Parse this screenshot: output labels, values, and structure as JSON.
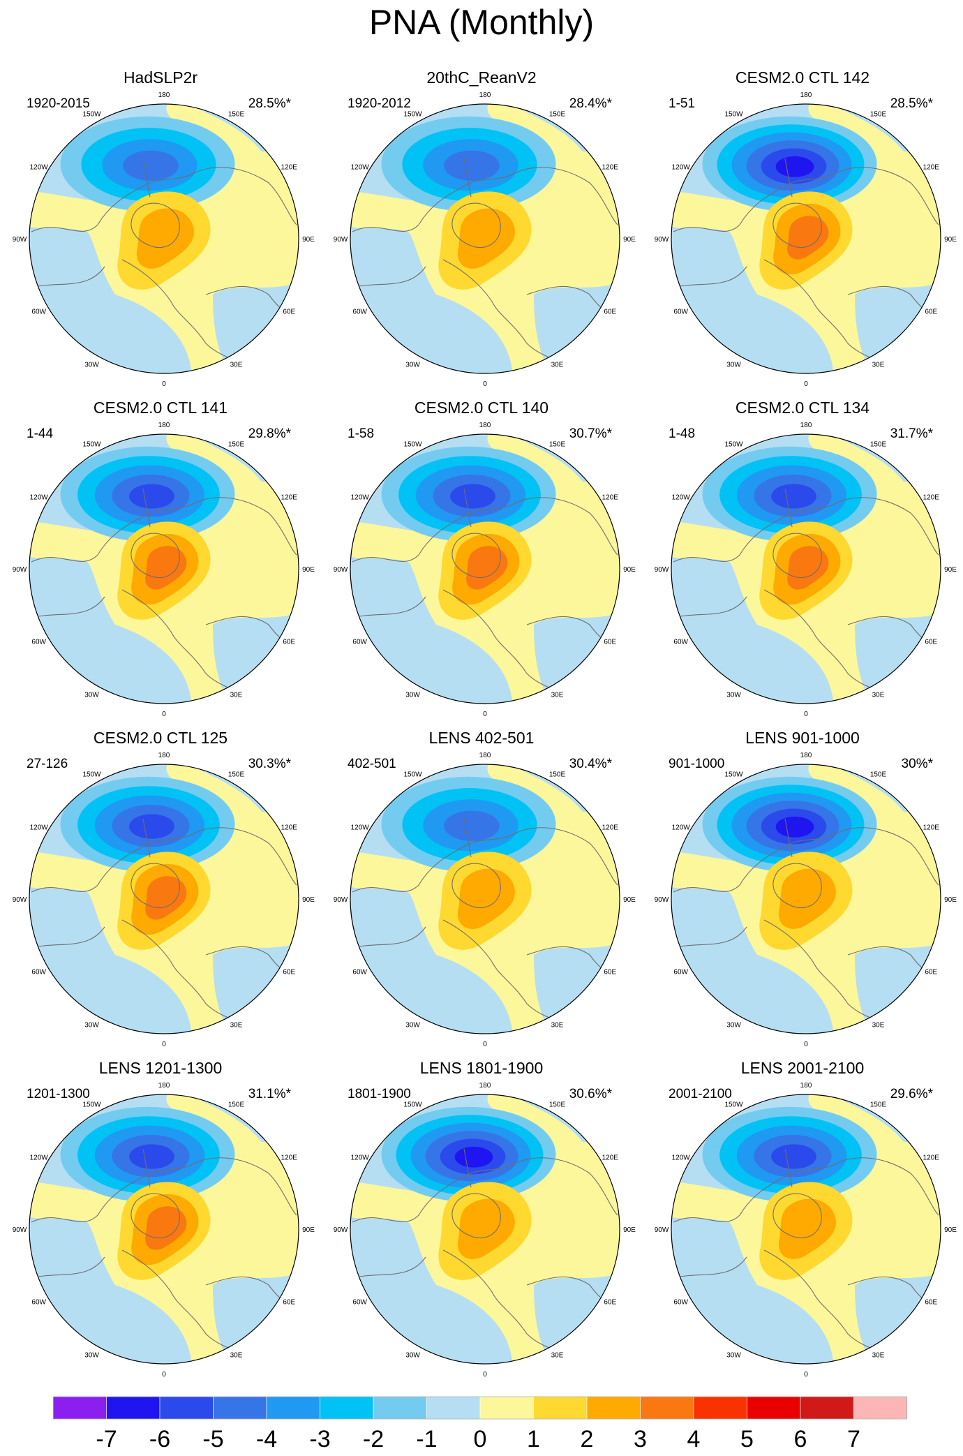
{
  "title": "PNA (Monthly)",
  "panels": [
    {
      "title": "HadSLP2r",
      "period": "1920-2015",
      "variance": "28.5%*"
    },
    {
      "title": "20thC_ReanV2",
      "period": "1920-2012",
      "variance": "28.4%*"
    },
    {
      "title": "CESM2.0 CTL 142",
      "period": "1-51",
      "variance": "28.5%*"
    },
    {
      "title": "CESM2.0 CTL 141",
      "period": "1-44",
      "variance": "29.8%*"
    },
    {
      "title": "CESM2.0 CTL 140",
      "period": "1-58",
      "variance": "30.7%*"
    },
    {
      "title": "CESM2.0 CTL 134",
      "period": "1-48",
      "variance": "31.7%*"
    },
    {
      "title": "CESM2.0 CTL 125",
      "period": "27-126",
      "variance": "30.3%*"
    },
    {
      "title": "LENS 402-501",
      "period": "402-501",
      "variance": "30.4%*"
    },
    {
      "title": "LENS 901-1000",
      "period": "901-1000",
      "variance": "30%*"
    },
    {
      "title": "LENS 1201-1300",
      "period": "1201-1300",
      "variance": "31.1%*"
    },
    {
      "title": "LENS 1801-1900",
      "period": "1801-1900",
      "variance": "30.6%*"
    },
    {
      "title": "LENS 2001-2100",
      "period": "2001-2100",
      "variance": "29.6%*"
    }
  ],
  "longitude_labels": [
    "180",
    "150E",
    "120E",
    "90E",
    "60E",
    "30E",
    "0",
    "30W",
    "60W",
    "90W",
    "120W",
    "150W"
  ],
  "colorbar": {
    "labels": [
      "-7",
      "-6",
      "-5",
      "-4",
      "-3",
      "-2",
      "-1",
      "0",
      "1",
      "2",
      "3",
      "4",
      "5",
      "6",
      "7"
    ],
    "colors": [
      "#8B1FF0",
      "#1E15F0",
      "#2B4AEB",
      "#3575E8",
      "#1F99F2",
      "#00C2F5",
      "#74CBF0",
      "#B5DEF2",
      "#FDF79B",
      "#FFD930",
      "#FFAA00",
      "#FA7810",
      "#FA3200",
      "#EB0000",
      "#D01A1A",
      "#FCB6B6"
    ]
  },
  "panel_fields": [
    {
      "low_level": 4,
      "high_level": 2
    },
    {
      "low_level": 4,
      "high_level": 2
    },
    {
      "low_level": 6,
      "high_level": 3
    },
    {
      "low_level": 5,
      "high_level": 3
    },
    {
      "low_level": 5,
      "high_level": 3
    },
    {
      "low_level": 5,
      "high_level": 3
    },
    {
      "low_level": 5,
      "high_level": 3
    },
    {
      "low_level": 4,
      "high_level": 2
    },
    {
      "low_level": 6,
      "high_level": 2
    },
    {
      "low_level": 5,
      "high_level": 3
    },
    {
      "low_level": 6,
      "high_level": 2
    },
    {
      "low_level": 5,
      "high_level": 2
    }
  ]
}
